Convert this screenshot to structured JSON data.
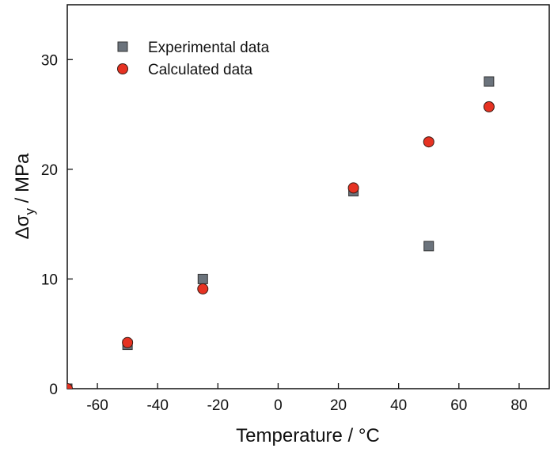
{
  "chart_data": {
    "type": "scatter",
    "xlabel": "Temperature / °C",
    "ylabel_main": "Δσ",
    "ylabel_sub": "y",
    "ylabel_suffix": " / MPa",
    "xlim": [
      -70,
      90
    ],
    "ylim": [
      0,
      35
    ],
    "xticks": [
      -60,
      -40,
      -20,
      0,
      20,
      40,
      60,
      80
    ],
    "yticks": [
      0,
      10,
      20,
      30
    ],
    "grid": false,
    "legend_position": "top-left",
    "series": [
      {
        "name": "Experimental data",
        "marker": "square",
        "color": "#6b737c",
        "points": [
          {
            "x": -70,
            "y": 0
          },
          {
            "x": -50,
            "y": 4
          },
          {
            "x": -25,
            "y": 10
          },
          {
            "x": 25,
            "y": 18
          },
          {
            "x": 50,
            "y": 13
          },
          {
            "x": 70,
            "y": 28
          }
        ]
      },
      {
        "name": "Calculated data",
        "marker": "circle",
        "color": "#e63222",
        "points": [
          {
            "x": -70,
            "y": 0
          },
          {
            "x": -50,
            "y": 4.2
          },
          {
            "x": -25,
            "y": 9.1
          },
          {
            "x": 25,
            "y": 18.3
          },
          {
            "x": 50,
            "y": 22.5
          },
          {
            "x": 70,
            "y": 25.7
          }
        ]
      }
    ]
  }
}
